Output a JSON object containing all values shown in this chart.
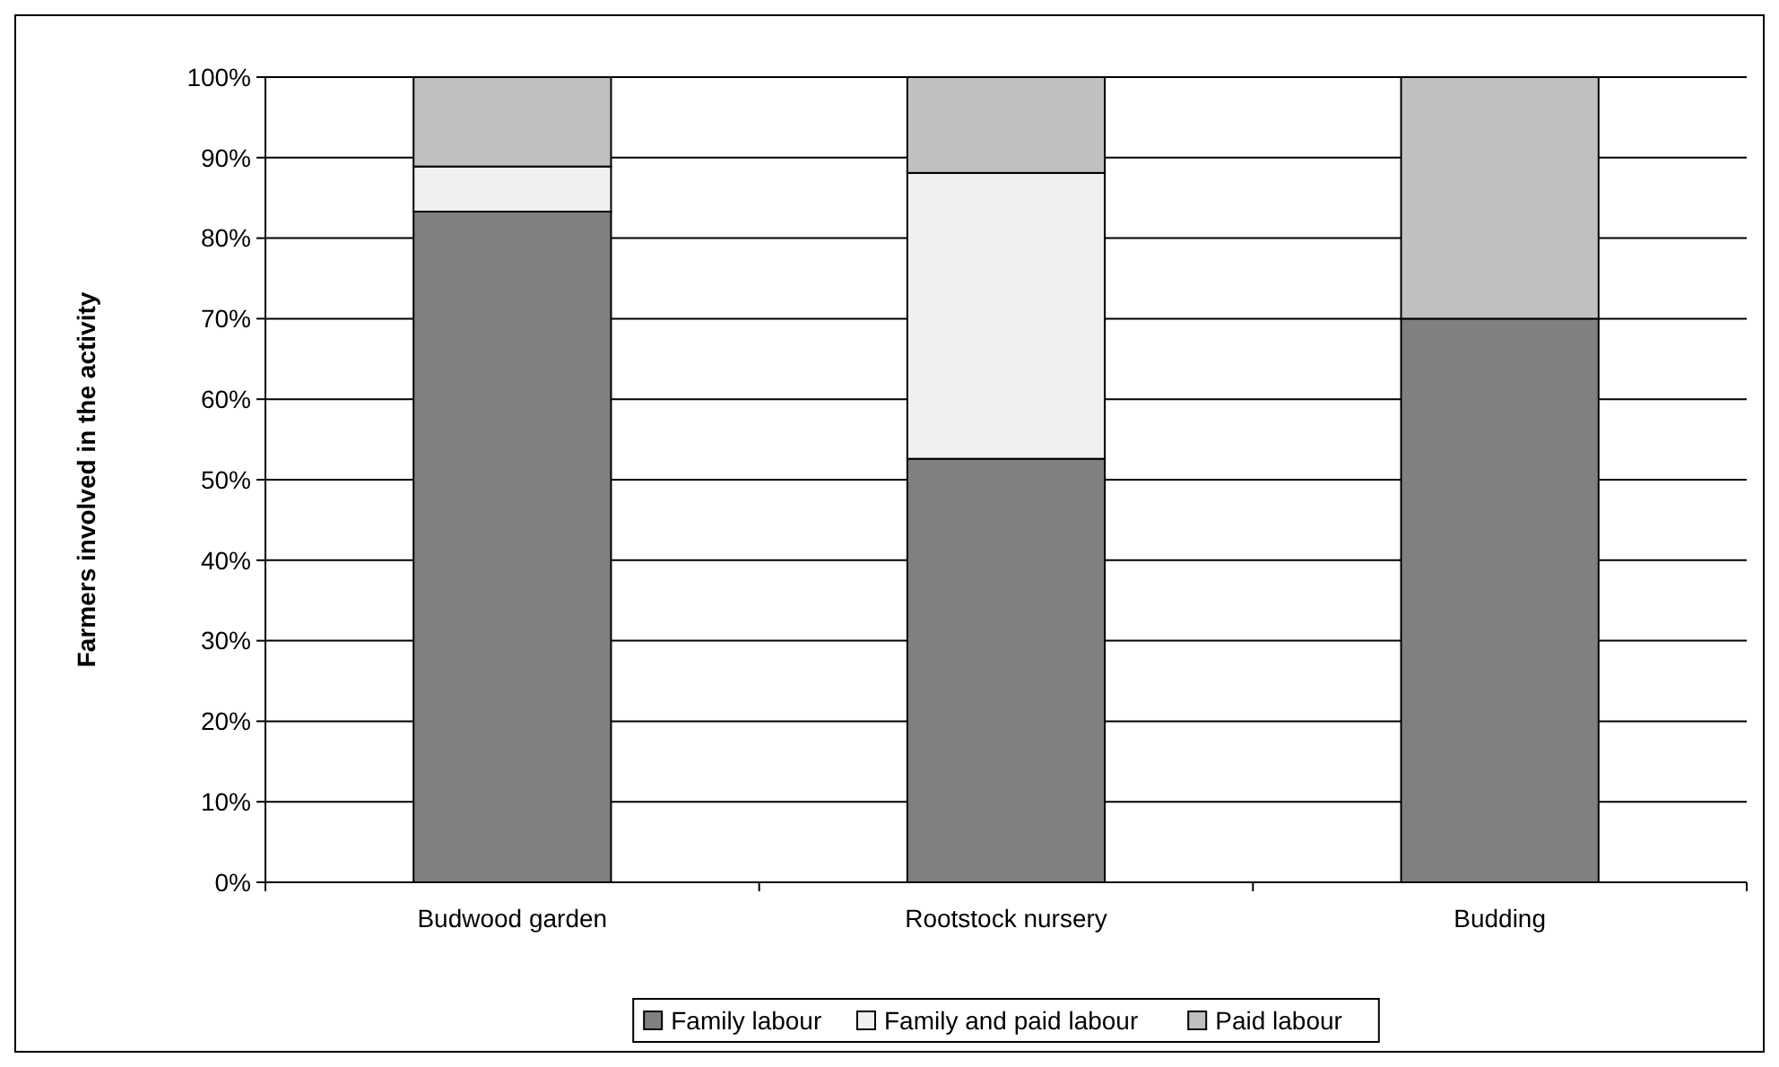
{
  "chart_data": {
    "type": "bar",
    "stacked": true,
    "ylabel": "Farmers involved in the activity",
    "categories": [
      "Budwood garden",
      "Rootstock nursery",
      "Budding"
    ],
    "series": [
      {
        "name": "Family labour",
        "color": "#808080",
        "values": [
          83.3,
          52.6,
          70
        ]
      },
      {
        "name": "Family and paid labour",
        "color": "#f0f0f0",
        "values": [
          5.6,
          35.5,
          0
        ]
      },
      {
        "name": "Paid labour",
        "color": "#c0c0c0",
        "values": [
          11.1,
          11.9,
          30
        ]
      }
    ],
    "ylim": [
      0,
      100
    ],
    "yticks": [
      {
        "value": 0,
        "label": "0%"
      },
      {
        "value": 10,
        "label": "10%"
      },
      {
        "value": 20,
        "label": "20%"
      },
      {
        "value": 30,
        "label": "30%"
      },
      {
        "value": 40,
        "label": "40%"
      },
      {
        "value": 50,
        "label": "50%"
      },
      {
        "value": 60,
        "label": "60%"
      },
      {
        "value": 70,
        "label": "70%"
      },
      {
        "value": 80,
        "label": "80%"
      },
      {
        "value": 90,
        "label": "90%"
      },
      {
        "value": 100,
        "label": "100%"
      }
    ],
    "grid": "y",
    "legend": "bottom"
  }
}
